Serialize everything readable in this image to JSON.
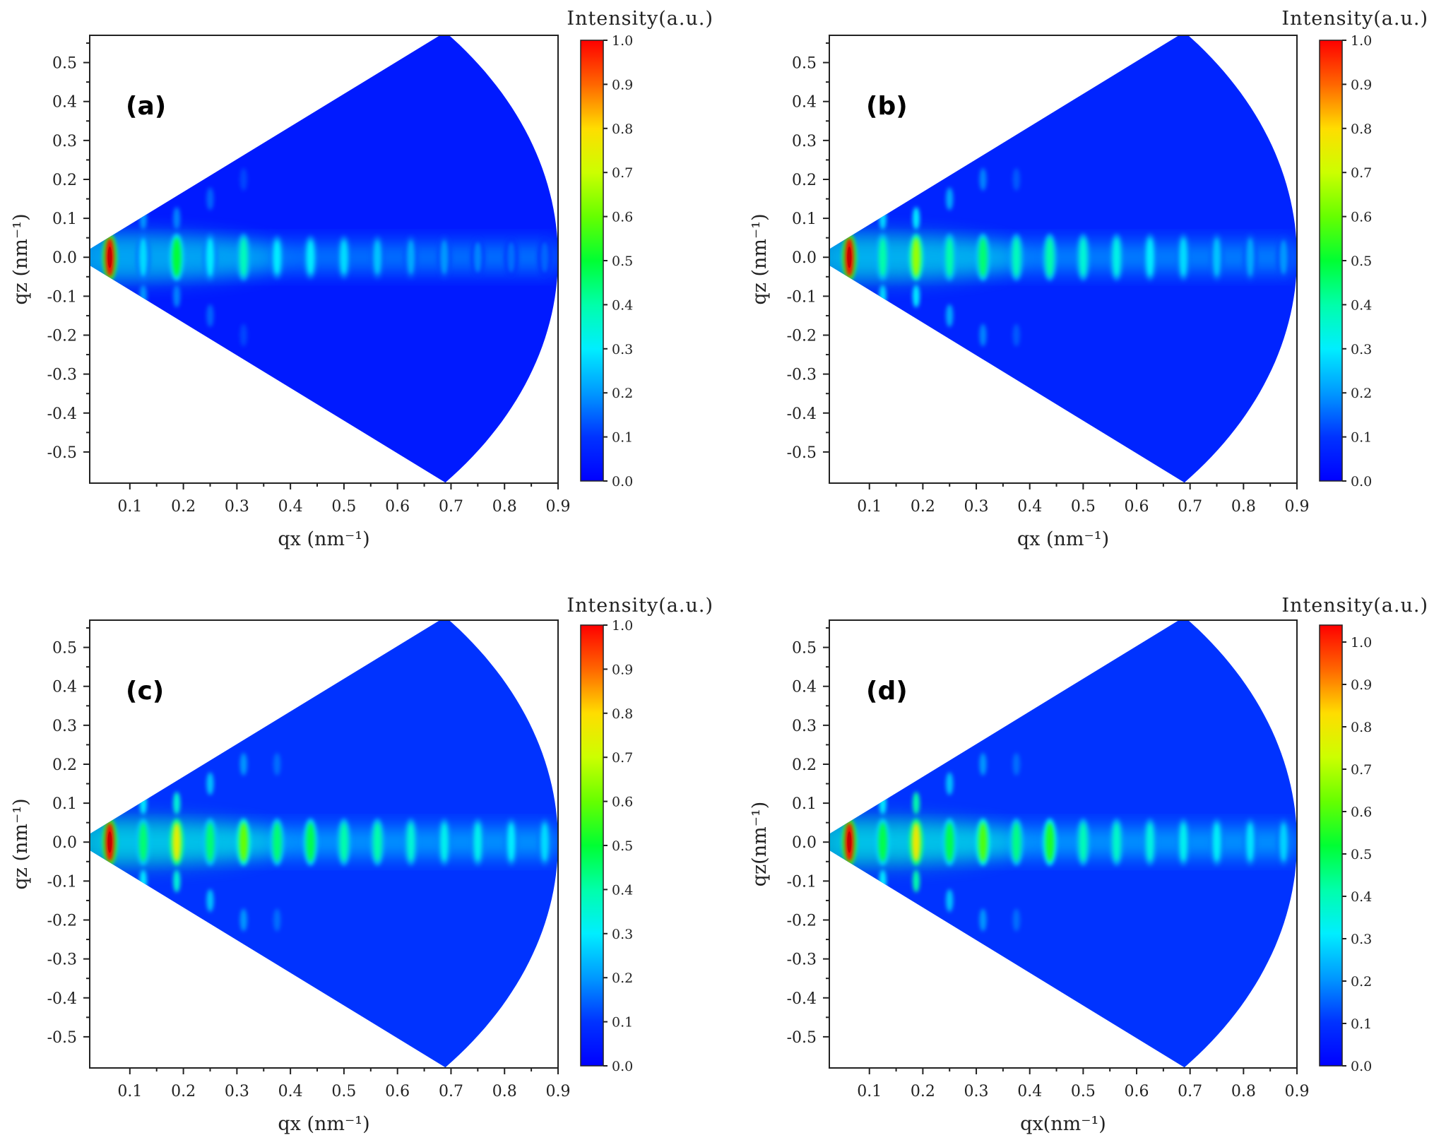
{
  "chart_data": [
    {
      "type": "heatmap",
      "panel_label": "(a)",
      "colorbar_title": "Intensity(a.u.)",
      "colorbar_ticks": [
        "0.0",
        "0.1",
        "0.2",
        "0.3",
        "0.4",
        "0.5",
        "0.6",
        "0.7",
        "0.8",
        "0.9",
        "1.0"
      ],
      "colorbar_range": [
        0,
        1.0
      ],
      "xlabel": "qx (nm⁻¹)",
      "ylabel": "qz (nm⁻¹)",
      "xlim": [
        0.025,
        0.9
      ],
      "ylim": [
        -0.58,
        0.57
      ],
      "xticks": [
        "0.1",
        "0.2",
        "0.3",
        "0.4",
        "0.5",
        "0.6",
        "0.7",
        "0.8",
        "0.9"
      ],
      "yticks": [
        "-0.5",
        "-0.4",
        "-0.3",
        "-0.2",
        "-0.1",
        "0.0",
        "0.1",
        "0.2",
        "0.3",
        "0.4",
        "0.5"
      ],
      "sector": {
        "q_max": 0.9,
        "half_angle_deg": 40
      },
      "background_intensity": 0.05,
      "peaks": [
        {
          "qx": 0.0625,
          "intensity": 1.0,
          "qz_extent": 0.05
        },
        {
          "qx": 0.125,
          "intensity": 0.28,
          "qz_extent": 0.05
        },
        {
          "qx": 0.1875,
          "intensity": 0.5,
          "qz_extent": 0.05
        },
        {
          "qx": 0.25,
          "intensity": 0.3,
          "qz_extent": 0.05
        },
        {
          "qx": 0.3125,
          "intensity": 0.38,
          "qz_extent": 0.05
        },
        {
          "qx": 0.375,
          "intensity": 0.3,
          "qz_extent": 0.045
        },
        {
          "qx": 0.4375,
          "intensity": 0.3,
          "qz_extent": 0.045
        },
        {
          "qx": 0.5,
          "intensity": 0.28,
          "qz_extent": 0.045
        },
        {
          "qx": 0.5625,
          "intensity": 0.25,
          "qz_extent": 0.045
        },
        {
          "qx": 0.625,
          "intensity": 0.22,
          "qz_extent": 0.045
        },
        {
          "qx": 0.6875,
          "intensity": 0.2,
          "qz_extent": 0.045
        },
        {
          "qx": 0.75,
          "intensity": 0.18,
          "qz_extent": 0.04
        },
        {
          "qx": 0.8125,
          "intensity": 0.16,
          "qz_extent": 0.04
        },
        {
          "qx": 0.875,
          "intensity": 0.15,
          "qz_extent": 0.04
        }
      ],
      "offaxis_peaks": [
        {
          "qx": 0.125,
          "qz": 0.1,
          "intensity": 0.2
        },
        {
          "qx": 0.125,
          "qz": -0.1,
          "intensity": 0.2
        },
        {
          "qx": 0.1875,
          "qz": 0.1,
          "intensity": 0.18
        },
        {
          "qx": 0.1875,
          "qz": -0.1,
          "intensity": 0.18
        },
        {
          "qx": 0.25,
          "qz": 0.15,
          "intensity": 0.15
        },
        {
          "qx": 0.25,
          "qz": -0.15,
          "intensity": 0.15
        },
        {
          "qx": 0.3125,
          "qz": 0.2,
          "intensity": 0.12
        },
        {
          "qx": 0.3125,
          "qz": -0.2,
          "intensity": 0.12
        }
      ]
    },
    {
      "type": "heatmap",
      "panel_label": "(b)",
      "colorbar_title": "Intensity(a.u.)",
      "colorbar_ticks": [
        "0.0",
        "0.1",
        "0.2",
        "0.3",
        "0.4",
        "0.5",
        "0.6",
        "0.7",
        "0.8",
        "0.9",
        "1.0"
      ],
      "colorbar_range": [
        0,
        1.0
      ],
      "xlabel": "qx (nm⁻¹)",
      "ylabel": "qz (nm⁻¹)",
      "xlim": [
        0.025,
        0.9
      ],
      "ylim": [
        -0.58,
        0.57
      ],
      "xticks": [
        "0.1",
        "0.2",
        "0.3",
        "0.4",
        "0.5",
        "0.6",
        "0.7",
        "0.8",
        "0.9"
      ],
      "yticks": [
        "-0.5",
        "-0.4",
        "-0.3",
        "-0.2",
        "-0.1",
        "0.0",
        "0.1",
        "0.2",
        "0.3",
        "0.4",
        "0.5"
      ],
      "sector": {
        "q_max": 0.9,
        "half_angle_deg": 40
      },
      "background_intensity": 0.07,
      "peaks": [
        {
          "qx": 0.0625,
          "intensity": 1.0,
          "qz_extent": 0.05
        },
        {
          "qx": 0.125,
          "intensity": 0.4,
          "qz_extent": 0.05
        },
        {
          "qx": 0.1875,
          "intensity": 0.65,
          "qz_extent": 0.05
        },
        {
          "qx": 0.25,
          "intensity": 0.4,
          "qz_extent": 0.05
        },
        {
          "qx": 0.3125,
          "intensity": 0.45,
          "qz_extent": 0.05
        },
        {
          "qx": 0.375,
          "intensity": 0.38,
          "qz_extent": 0.05
        },
        {
          "qx": 0.4375,
          "intensity": 0.4,
          "qz_extent": 0.05
        },
        {
          "qx": 0.5,
          "intensity": 0.35,
          "qz_extent": 0.05
        },
        {
          "qx": 0.5625,
          "intensity": 0.33,
          "qz_extent": 0.05
        },
        {
          "qx": 0.625,
          "intensity": 0.3,
          "qz_extent": 0.05
        },
        {
          "qx": 0.6875,
          "intensity": 0.28,
          "qz_extent": 0.05
        },
        {
          "qx": 0.75,
          "intensity": 0.25,
          "qz_extent": 0.05
        },
        {
          "qx": 0.8125,
          "intensity": 0.22,
          "qz_extent": 0.05
        },
        {
          "qx": 0.875,
          "intensity": 0.2,
          "qz_extent": 0.045
        }
      ],
      "offaxis_peaks": [
        {
          "qx": 0.125,
          "qz": 0.1,
          "intensity": 0.28
        },
        {
          "qx": 0.125,
          "qz": -0.1,
          "intensity": 0.28
        },
        {
          "qx": 0.1875,
          "qz": 0.1,
          "intensity": 0.3
        },
        {
          "qx": 0.1875,
          "qz": -0.1,
          "intensity": 0.3
        },
        {
          "qx": 0.25,
          "qz": 0.15,
          "intensity": 0.22
        },
        {
          "qx": 0.25,
          "qz": -0.15,
          "intensity": 0.22
        },
        {
          "qx": 0.3125,
          "qz": 0.2,
          "intensity": 0.18
        },
        {
          "qx": 0.3125,
          "qz": -0.2,
          "intensity": 0.18
        },
        {
          "qx": 0.375,
          "qz": 0.2,
          "intensity": 0.14
        },
        {
          "qx": 0.375,
          "qz": -0.2,
          "intensity": 0.14
        }
      ]
    },
    {
      "type": "heatmap",
      "panel_label": "(c)",
      "colorbar_title": "Intensity(a.u.)",
      "colorbar_ticks": [
        "0.0",
        "0.1",
        "0.2",
        "0.3",
        "0.4",
        "0.5",
        "0.6",
        "0.7",
        "0.8",
        "0.9",
        "1.0"
      ],
      "colorbar_range": [
        0,
        1.0
      ],
      "xlabel": "qx (nm⁻¹)",
      "ylabel": "qz (nm⁻¹)",
      "xlim": [
        0.025,
        0.9
      ],
      "ylim": [
        -0.58,
        0.57
      ],
      "xticks": [
        "0.1",
        "0.2",
        "0.3",
        "0.4",
        "0.5",
        "0.6",
        "0.7",
        "0.8",
        "0.9"
      ],
      "yticks": [
        "-0.5",
        "-0.4",
        "-0.3",
        "-0.2",
        "-0.1",
        "0.0",
        "0.1",
        "0.2",
        "0.3",
        "0.4",
        "0.5"
      ],
      "sector": {
        "q_max": 0.9,
        "half_angle_deg": 40
      },
      "background_intensity": 0.1,
      "peaks": [
        {
          "qx": 0.0625,
          "intensity": 1.0,
          "qz_extent": 0.05
        },
        {
          "qx": 0.125,
          "intensity": 0.45,
          "qz_extent": 0.05
        },
        {
          "qx": 0.1875,
          "intensity": 0.75,
          "qz_extent": 0.05
        },
        {
          "qx": 0.25,
          "intensity": 0.45,
          "qz_extent": 0.05
        },
        {
          "qx": 0.3125,
          "intensity": 0.6,
          "qz_extent": 0.05
        },
        {
          "qx": 0.375,
          "intensity": 0.45,
          "qz_extent": 0.05
        },
        {
          "qx": 0.4375,
          "intensity": 0.48,
          "qz_extent": 0.05
        },
        {
          "qx": 0.5,
          "intensity": 0.4,
          "qz_extent": 0.05
        },
        {
          "qx": 0.5625,
          "intensity": 0.4,
          "qz_extent": 0.05
        },
        {
          "qx": 0.625,
          "intensity": 0.35,
          "qz_extent": 0.05
        },
        {
          "qx": 0.6875,
          "intensity": 0.32,
          "qz_extent": 0.05
        },
        {
          "qx": 0.75,
          "intensity": 0.32,
          "qz_extent": 0.05
        },
        {
          "qx": 0.8125,
          "intensity": 0.3,
          "qz_extent": 0.05
        },
        {
          "qx": 0.875,
          "intensity": 0.28,
          "qz_extent": 0.05
        }
      ],
      "offaxis_peaks": [
        {
          "qx": 0.125,
          "qz": 0.1,
          "intensity": 0.3
        },
        {
          "qx": 0.125,
          "qz": -0.1,
          "intensity": 0.3
        },
        {
          "qx": 0.1875,
          "qz": 0.1,
          "intensity": 0.35
        },
        {
          "qx": 0.1875,
          "qz": -0.1,
          "intensity": 0.35
        },
        {
          "qx": 0.25,
          "qz": 0.15,
          "intensity": 0.25
        },
        {
          "qx": 0.25,
          "qz": -0.15,
          "intensity": 0.25
        },
        {
          "qx": 0.3125,
          "qz": 0.2,
          "intensity": 0.2
        },
        {
          "qx": 0.3125,
          "qz": -0.2,
          "intensity": 0.2
        },
        {
          "qx": 0.375,
          "qz": 0.2,
          "intensity": 0.16
        },
        {
          "qx": 0.375,
          "qz": -0.2,
          "intensity": 0.16
        }
      ]
    },
    {
      "type": "heatmap",
      "panel_label": "(d)",
      "colorbar_title": "Intensity(a.u.)",
      "colorbar_ticks": [
        "0.0",
        "0.1",
        "0.2",
        "0.3",
        "0.4",
        "0.5",
        "0.6",
        "0.7",
        "0.8",
        "0.9",
        "1.0"
      ],
      "colorbar_range": [
        0,
        1.04
      ],
      "xlabel": "qx(nm⁻¹)",
      "ylabel": "qz(nm⁻¹)",
      "xlim": [
        0.025,
        0.9
      ],
      "ylim": [
        -0.58,
        0.57
      ],
      "xticks": [
        "0.1",
        "0.2",
        "0.3",
        "0.4",
        "0.5",
        "0.6",
        "0.7",
        "0.8",
        "0.9"
      ],
      "yticks": [
        "-0.5",
        "-0.4",
        "-0.3",
        "-0.2",
        "-0.1",
        "0.0",
        "0.1",
        "0.2",
        "0.3",
        "0.4",
        "0.5"
      ],
      "sector": {
        "q_max": 0.9,
        "half_angle_deg": 40
      },
      "background_intensity": 0.1,
      "peaks": [
        {
          "qx": 0.0625,
          "intensity": 1.04,
          "qz_extent": 0.05
        },
        {
          "qx": 0.125,
          "intensity": 0.5,
          "qz_extent": 0.05
        },
        {
          "qx": 0.1875,
          "intensity": 0.8,
          "qz_extent": 0.05
        },
        {
          "qx": 0.25,
          "intensity": 0.5,
          "qz_extent": 0.05
        },
        {
          "qx": 0.3125,
          "intensity": 0.6,
          "qz_extent": 0.05
        },
        {
          "qx": 0.375,
          "intensity": 0.45,
          "qz_extent": 0.05
        },
        {
          "qx": 0.4375,
          "intensity": 0.55,
          "qz_extent": 0.05
        },
        {
          "qx": 0.5,
          "intensity": 0.4,
          "qz_extent": 0.05
        },
        {
          "qx": 0.5625,
          "intensity": 0.38,
          "qz_extent": 0.05
        },
        {
          "qx": 0.625,
          "intensity": 0.35,
          "qz_extent": 0.05
        },
        {
          "qx": 0.6875,
          "intensity": 0.33,
          "qz_extent": 0.05
        },
        {
          "qx": 0.75,
          "intensity": 0.32,
          "qz_extent": 0.05
        },
        {
          "qx": 0.8125,
          "intensity": 0.3,
          "qz_extent": 0.05
        },
        {
          "qx": 0.875,
          "intensity": 0.28,
          "qz_extent": 0.05
        }
      ],
      "offaxis_peaks": [
        {
          "qx": 0.125,
          "qz": 0.1,
          "intensity": 0.3
        },
        {
          "qx": 0.125,
          "qz": -0.1,
          "intensity": 0.3
        },
        {
          "qx": 0.1875,
          "qz": 0.1,
          "intensity": 0.4
        },
        {
          "qx": 0.1875,
          "qz": -0.1,
          "intensity": 0.4
        },
        {
          "qx": 0.25,
          "qz": 0.15,
          "intensity": 0.25
        },
        {
          "qx": 0.25,
          "qz": -0.15,
          "intensity": 0.25
        },
        {
          "qx": 0.3125,
          "qz": 0.2,
          "intensity": 0.2
        },
        {
          "qx": 0.3125,
          "qz": -0.2,
          "intensity": 0.2
        },
        {
          "qx": 0.375,
          "qz": 0.2,
          "intensity": 0.16
        },
        {
          "qx": 0.375,
          "qz": -0.2,
          "intensity": 0.16
        }
      ]
    }
  ]
}
